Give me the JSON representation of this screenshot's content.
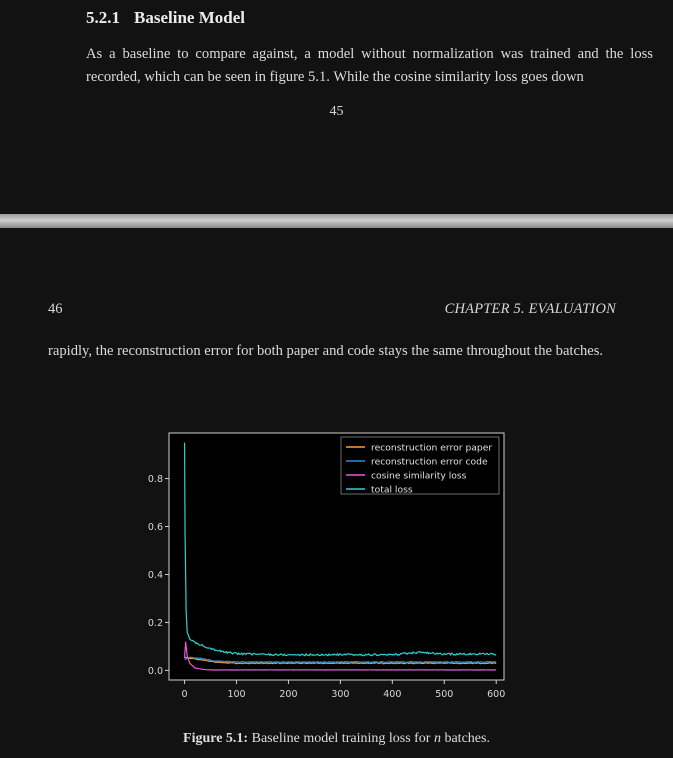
{
  "section": {
    "number": "5.2.1",
    "title": "Baseline Model"
  },
  "paragraph1": "As a baseline to compare against, a model without normalization was trained and the loss recorded, which can be seen in figure 5.1. While the cosine similarity loss goes down",
  "page_number_top": "45",
  "page_number_bottom": "46",
  "chapter_header": "CHAPTER 5.  EVALUATION",
  "paragraph2": "rapidly, the reconstruction error for both paper and code stays the same throughout the batches.",
  "caption": {
    "label": "Figure 5.1:",
    "text_before": "Baseline model training loss for ",
    "italic": "n",
    "text_after": " batches."
  },
  "chart_data": {
    "type": "line",
    "xlim": [
      -30,
      615
    ],
    "ylim": [
      -0.04,
      0.99
    ],
    "xticks": [
      0,
      100,
      200,
      300,
      400,
      500,
      600
    ],
    "yticks": [
      0.0,
      0.2,
      0.4,
      0.6,
      0.8
    ],
    "ytick_labels": [
      "0.0",
      "0.2",
      "0.4",
      "0.6",
      "0.8"
    ],
    "legend_position": "top-right",
    "grid": false,
    "series": [
      {
        "name": "reconstruction error paper",
        "color": "#ff9a3c",
        "x": [
          0,
          10,
          30,
          60,
          100,
          200,
          300,
          400,
          500,
          600
        ],
        "y": [
          0.055,
          0.05,
          0.045,
          0.035,
          0.03,
          0.03,
          0.03,
          0.03,
          0.03,
          0.03
        ]
      },
      {
        "name": "reconstruction error code",
        "color": "#1f8fe0",
        "x": [
          0,
          10,
          30,
          60,
          100,
          200,
          300,
          400,
          500,
          600
        ],
        "y": [
          0.045,
          0.055,
          0.05,
          0.04,
          0.035,
          0.035,
          0.035,
          0.035,
          0.035,
          0.035
        ]
      },
      {
        "name": "cosine similarity loss",
        "color": "#e85ad6",
        "x": [
          0,
          2,
          5,
          10,
          20,
          40,
          60,
          100,
          200,
          300,
          400,
          500,
          600
        ],
        "y": [
          0.05,
          0.12,
          0.06,
          0.03,
          0.01,
          0.003,
          0.002,
          0.002,
          0.002,
          0.002,
          0.002,
          0.002,
          0.002
        ]
      },
      {
        "name": "total loss",
        "color": "#2fd1cf",
        "x": [
          0,
          1,
          3,
          5,
          10,
          20,
          40,
          60,
          80,
          100,
          150,
          200,
          300,
          400,
          450,
          500,
          600
        ],
        "y": [
          0.95,
          0.55,
          0.25,
          0.16,
          0.13,
          0.115,
          0.1,
          0.085,
          0.075,
          0.07,
          0.067,
          0.065,
          0.065,
          0.065,
          0.075,
          0.068,
          0.068
        ]
      }
    ]
  },
  "colors": {
    "background": "#121212",
    "text": "#dcdcdc",
    "plot_background": "#000000"
  }
}
